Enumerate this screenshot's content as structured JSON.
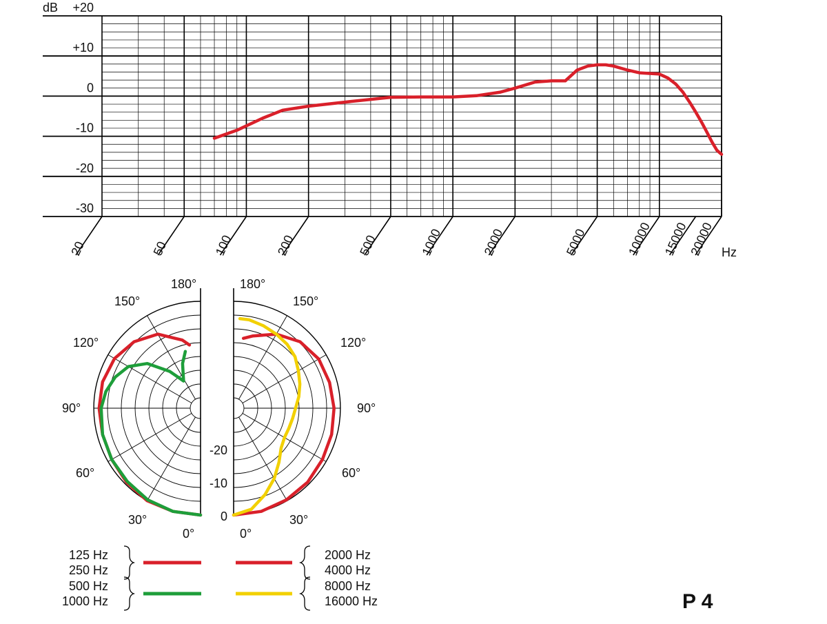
{
  "chart_data": [
    {
      "type": "line",
      "x_scale": "log",
      "x_unit": "Hz",
      "y_unit": "dB",
      "xlim": [
        20,
        20000
      ],
      "ylim": [
        -30,
        20
      ],
      "x_ticks": [
        20,
        50,
        100,
        200,
        500,
        1000,
        2000,
        5000,
        10000,
        15000,
        20000
      ],
      "x_tick_labels": [
        "20",
        "50",
        "100",
        "200",
        "500",
        "1000",
        "2000",
        "5000",
        "10000",
        "15000",
        "20000"
      ],
      "y_ticks": [
        20,
        10,
        0,
        -10,
        -20,
        -30
      ],
      "y_tick_labels": [
        "+20",
        "+10",
        "0",
        "-10",
        "-20",
        "-30"
      ],
      "grid": true,
      "line_color": "#d9202a",
      "series": [
        {
          "x": [
            70,
            90,
            120,
            150,
            200,
            300,
            500,
            700,
            1000,
            1300,
            1700,
            2000,
            2500,
            3000,
            3500,
            4000,
            4500,
            5000,
            5500,
            6000,
            7000,
            8000,
            10000,
            11000,
            12000,
            13000,
            14000,
            15000,
            16000,
            17000,
            18000,
            19000,
            20000
          ],
          "y": [
            -10.5,
            -8.5,
            -5.5,
            -3.5,
            -2.5,
            -1.5,
            -0.3,
            -0.2,
            -0.2,
            0.1,
            1.0,
            2.0,
            3.5,
            3.8,
            3.8,
            6.5,
            7.5,
            7.8,
            7.8,
            7.5,
            6.5,
            5.8,
            5.5,
            4.5,
            3.0,
            1.0,
            -1.5,
            -4.0,
            -6.5,
            -9.0,
            -11.5,
            -13.5,
            -14.5
          ]
        }
      ]
    },
    {
      "type": "polar",
      "angle_labels_left": [
        "180°",
        "150°",
        "120°",
        "90°",
        "60°",
        "30°",
        "0°"
      ],
      "angle_labels_right": [
        "180°",
        "150°",
        "120°",
        "90°",
        "60°",
        "30°",
        "0°"
      ],
      "radial_labels": [
        "-20",
        "-10",
        "0"
      ],
      "rings": 7,
      "series": [
        {
          "legend_side": "left",
          "labels": [
            "125 Hz",
            "250 Hz"
          ],
          "color": "#d9202a",
          "angles_deg": [
            0,
            15,
            30,
            45,
            60,
            75,
            90,
            105,
            120,
            135,
            150,
            165,
            170
          ],
          "radius_frac": [
            1.0,
            1.0,
            1.0,
            0.98,
            0.96,
            0.95,
            0.95,
            0.95,
            0.93,
            0.88,
            0.8,
            0.66,
            0.6
          ]
        },
        {
          "legend_side": "left",
          "labels": [
            "500 Hz",
            "1000 Hz"
          ],
          "color": "#1e9e3a",
          "angles_deg": [
            0,
            15,
            30,
            45,
            60,
            75,
            90,
            100,
            110,
            120,
            130,
            140,
            148,
            158,
            165
          ],
          "radius_frac": [
            1.0,
            1.0,
            0.99,
            0.97,
            0.96,
            0.95,
            0.93,
            0.9,
            0.85,
            0.78,
            0.65,
            0.45,
            0.3,
            0.45,
            0.55
          ]
        },
        {
          "legend_side": "right",
          "labels": [
            "2000 Hz",
            "4000 Hz"
          ],
          "color": "#d9202a",
          "angles_deg": [
            0,
            15,
            30,
            45,
            60,
            75,
            90,
            105,
            120,
            135,
            150,
            165,
            172
          ],
          "radius_frac": [
            1.0,
            1.0,
            0.99,
            0.98,
            0.96,
            0.95,
            0.94,
            0.93,
            0.92,
            0.88,
            0.8,
            0.7,
            0.66
          ]
        },
        {
          "legend_side": "right",
          "labels": [
            "8000 Hz",
            "16000 Hz"
          ],
          "color": "#f2d000",
          "angles_deg": [
            0,
            10,
            20,
            30,
            40,
            50,
            60,
            70,
            80,
            90,
            100,
            110,
            120,
            130,
            140,
            150,
            160,
            170,
            176
          ],
          "radius_frac": [
            1.0,
            0.96,
            0.86,
            0.76,
            0.66,
            0.58,
            0.55,
            0.55,
            0.56,
            0.58,
            0.62,
            0.66,
            0.7,
            0.75,
            0.78,
            0.8,
            0.82,
            0.84,
            0.84
          ]
        }
      ]
    }
  ],
  "x_unit_label": "Hz",
  "y_unit_label": "dB",
  "model": "P 4"
}
